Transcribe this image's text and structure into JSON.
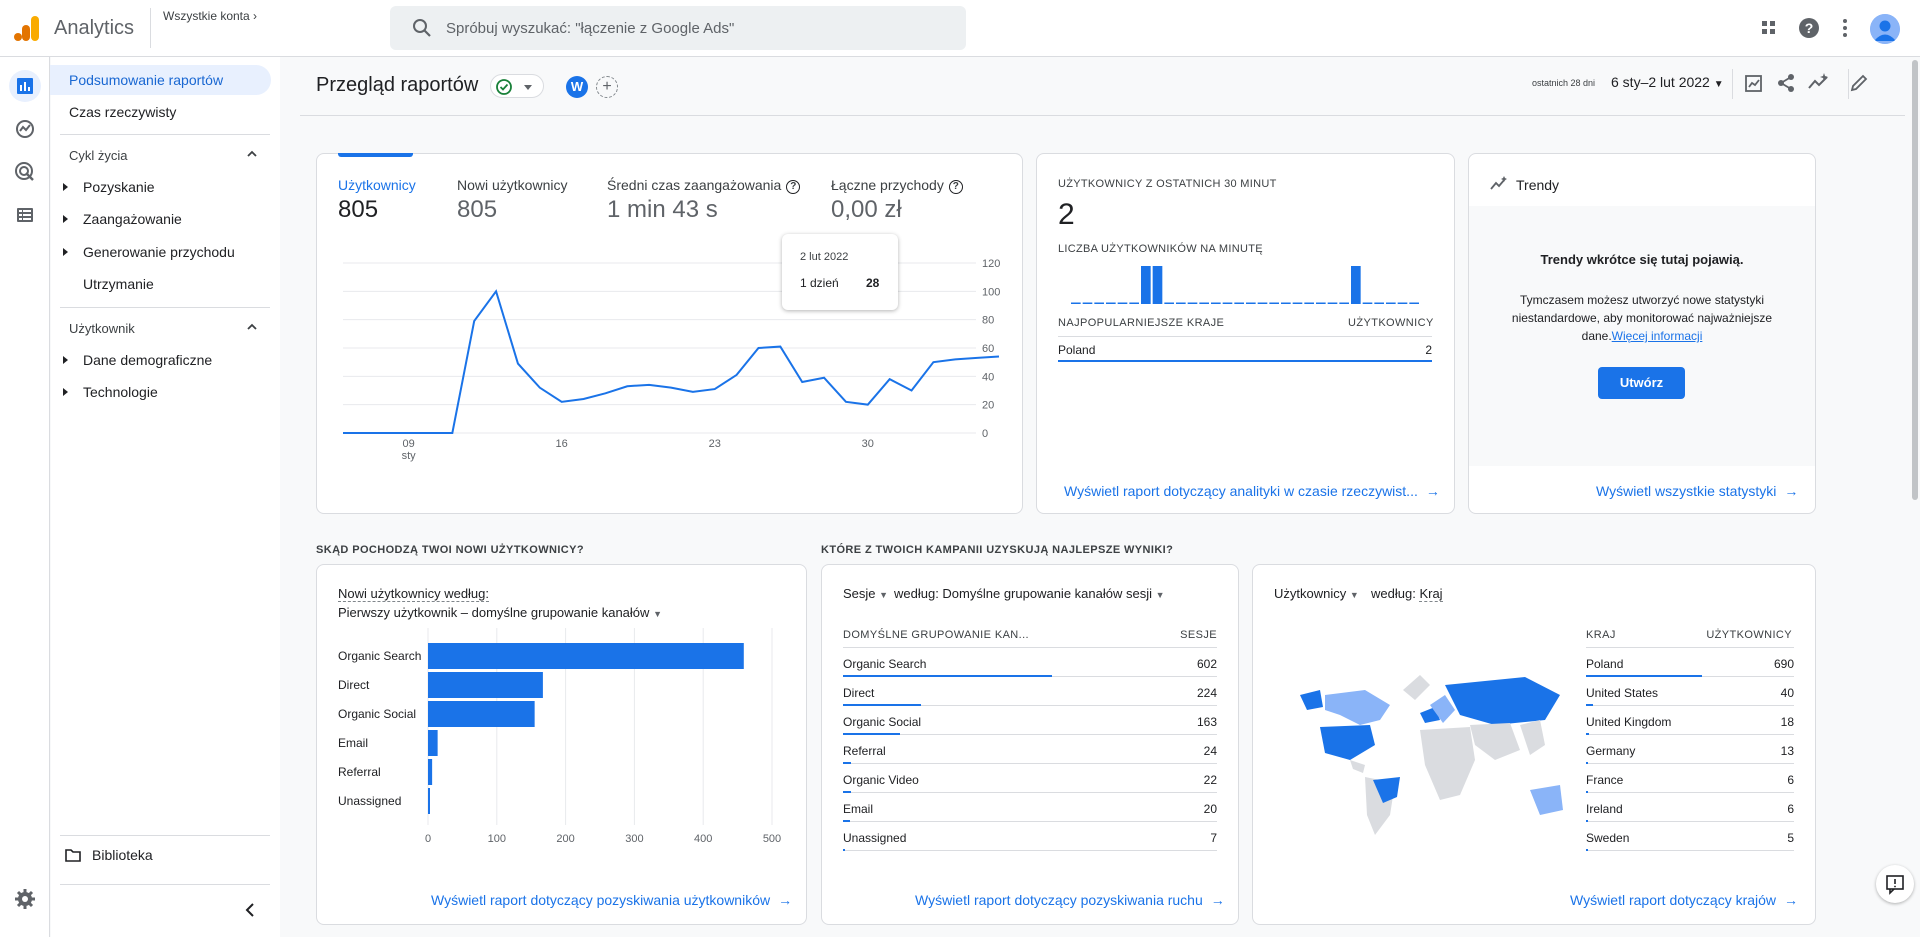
{
  "app": {
    "name": "Analytics",
    "account_breadcrumb": "Wszystkie konta",
    "search_placeholder": "Spróbuj wyszukać: \"łączenie z Google Ads\""
  },
  "nav": {
    "reports_snapshot": "Podsumowanie raportów",
    "realtime": "Czas rzeczywisty",
    "lifecycle": {
      "label": "Cykl życia",
      "items": [
        "Pozyskanie",
        "Zaangażowanie",
        "Generowanie przychodu",
        "Utrzymanie"
      ]
    },
    "user": {
      "label": "Użytkownik",
      "items": [
        "Dane demograficzne",
        "Technologie"
      ]
    },
    "library": "Biblioteka"
  },
  "header": {
    "title": "Przegląd raportów",
    "compare_letter": "W",
    "date_prefix": "ostatnich 28 dni",
    "date_range": "6 sty–2 lut 2022"
  },
  "overview": {
    "metrics": [
      {
        "label": "Użytkownicy",
        "value": "805"
      },
      {
        "label": "Nowi użytkownicy",
        "value": "805"
      },
      {
        "label": "Średni czas zaangażowania",
        "value": "1 min 43 s"
      },
      {
        "label": "Łączne przychody",
        "value": "0,00 zł"
      }
    ],
    "tooltip": {
      "date": "2 lut 2022",
      "label": "1 dzień",
      "value": "28"
    }
  },
  "chart_data": [
    {
      "type": "line",
      "series": [
        {
          "name": "Użytkownicy",
          "values": [
            0,
            0,
            0,
            0,
            0,
            0,
            79,
            100,
            49,
            32,
            22,
            24,
            28,
            33,
            34,
            32,
            29,
            31,
            41,
            60,
            61,
            36,
            39,
            22,
            20,
            38,
            30,
            50,
            52,
            53,
            54
          ]
        }
      ],
      "x_ticks": [
        "09",
        "16",
        "23",
        "30"
      ],
      "x_sub": "sty",
      "y_ticks": [
        120,
        100,
        80,
        60,
        40,
        20,
        0
      ],
      "ylim": [
        0,
        120
      ]
    },
    {
      "type": "bar",
      "orientation": "horizontal",
      "categories": [
        "Organic Search",
        "Direct",
        "Organic Social",
        "Email",
        "Referral",
        "Unassigned"
      ],
      "values": [
        459,
        167,
        155,
        14,
        6,
        2
      ],
      "x_ticks": [
        0,
        100,
        200,
        300,
        400,
        500
      ],
      "xlim": [
        0,
        500
      ]
    },
    {
      "type": "bar",
      "categories": [
        "1",
        "2",
        "3",
        "4",
        "5",
        "6",
        "7",
        "8",
        "9",
        "10",
        "11",
        "12",
        "13",
        "14",
        "15",
        "16",
        "17",
        "18",
        "19",
        "20",
        "21",
        "22",
        "23",
        "24",
        "25",
        "26",
        "27",
        "28",
        "29",
        "30"
      ],
      "values": [
        0,
        0,
        0,
        0,
        0,
        0,
        1,
        1,
        0,
        0,
        0,
        0,
        0,
        0,
        0,
        0,
        0,
        0,
        0,
        0,
        0,
        0,
        0,
        0,
        1,
        0,
        0,
        0,
        0,
        0
      ]
    }
  ],
  "realtime": {
    "title": "UŻYTKOWNICY Z OSTATNICH 30 MINUT",
    "count": "2",
    "per_minute_label": "LICZBA UŻYTKOWNIKÓW NA MINUTĘ",
    "top_countries_h": "NAJPOPULARNIEJSZE KRAJE",
    "users_h": "UŻYTKOWNICY",
    "rows": [
      {
        "country": "Poland",
        "value": "2"
      }
    ],
    "link": "Wyświetl raport dotyczący analityki w czasie rzeczywist..."
  },
  "insights": {
    "title": "Trendy",
    "heading": "Trendy wkrótce się tutaj pojawią.",
    "body": "Tymczasem możesz utworzyć nowe statystyki niestandardowe, aby monitorować najważniejsze",
    "body_end": "dane.",
    "more_link": "Więcej informacji",
    "button": "Utwórz",
    "link": "Wyświetl wszystkie statystyki"
  },
  "sections": {
    "acquisition_title": "SKĄD POCHODZĄ TWOI NOWI UŻYTKOWNICY?",
    "campaigns_title": "KTÓRE Z TWOICH KAMPANII UZYSKUJĄ NAJLEPSZE WYNIKI?"
  },
  "new_users": {
    "label_1": "Nowi użytkownicy według:",
    "label_2": "Pierwszy użytkownik – domyślne grupowanie kanałów",
    "link": "Wyświetl raport dotyczący pozyskiwania użytkowników"
  },
  "sessions": {
    "metric": "Sesje",
    "by": "według: Domyślne grupowanie kanałów sesji",
    "col1": "DOMYŚLNE GRUPOWANIE KAN...",
    "col2": "SESJE",
    "rows": [
      {
        "label": "Organic Search",
        "value": "602"
      },
      {
        "label": "Direct",
        "value": "224"
      },
      {
        "label": "Organic Social",
        "value": "163"
      },
      {
        "label": "Referral",
        "value": "24"
      },
      {
        "label": "Organic Video",
        "value": "22"
      },
      {
        "label": "Email",
        "value": "20"
      },
      {
        "label": "Unassigned",
        "value": "7"
      }
    ],
    "link": "Wyświetl raport dotyczący pozyskiwania ruchu"
  },
  "countries": {
    "metric": "Użytkownicy",
    "by_prefix": "według:",
    "by_value": "Kraj",
    "col1": "KRAJ",
    "col2": "UŻYTKOWNICY",
    "rows": [
      {
        "label": "Poland",
        "value": "690"
      },
      {
        "label": "United States",
        "value": "40"
      },
      {
        "label": "United Kingdom",
        "value": "18"
      },
      {
        "label": "Germany",
        "value": "13"
      },
      {
        "label": "France",
        "value": "6"
      },
      {
        "label": "Ireland",
        "value": "6"
      },
      {
        "label": "Sweden",
        "value": "5"
      }
    ],
    "link": "Wyświetl raport dotyczący krajów"
  },
  "colors": {
    "accent": "#1a73e8",
    "map_light": "#8ab4f8",
    "map_base": "#dadce0"
  }
}
